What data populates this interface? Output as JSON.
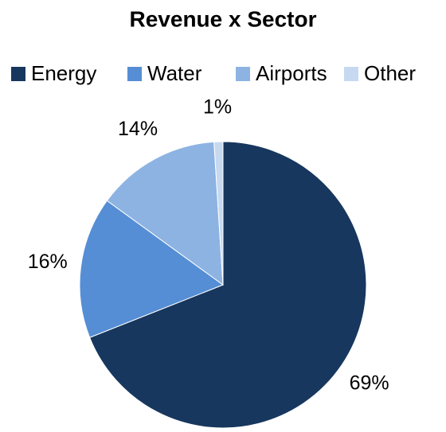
{
  "chart_data": {
    "type": "pie",
    "title": "Revenue x Sector",
    "categories": [
      "Energy",
      "Water",
      "Airports",
      "Other"
    ],
    "values": [
      69,
      16,
      14,
      1
    ],
    "value_labels": [
      "69%",
      "16%",
      "14%",
      "1%"
    ],
    "colors": [
      "#17375e",
      "#558ed5",
      "#8db3e2",
      "#c6d9f1"
    ],
    "legend": "top"
  }
}
